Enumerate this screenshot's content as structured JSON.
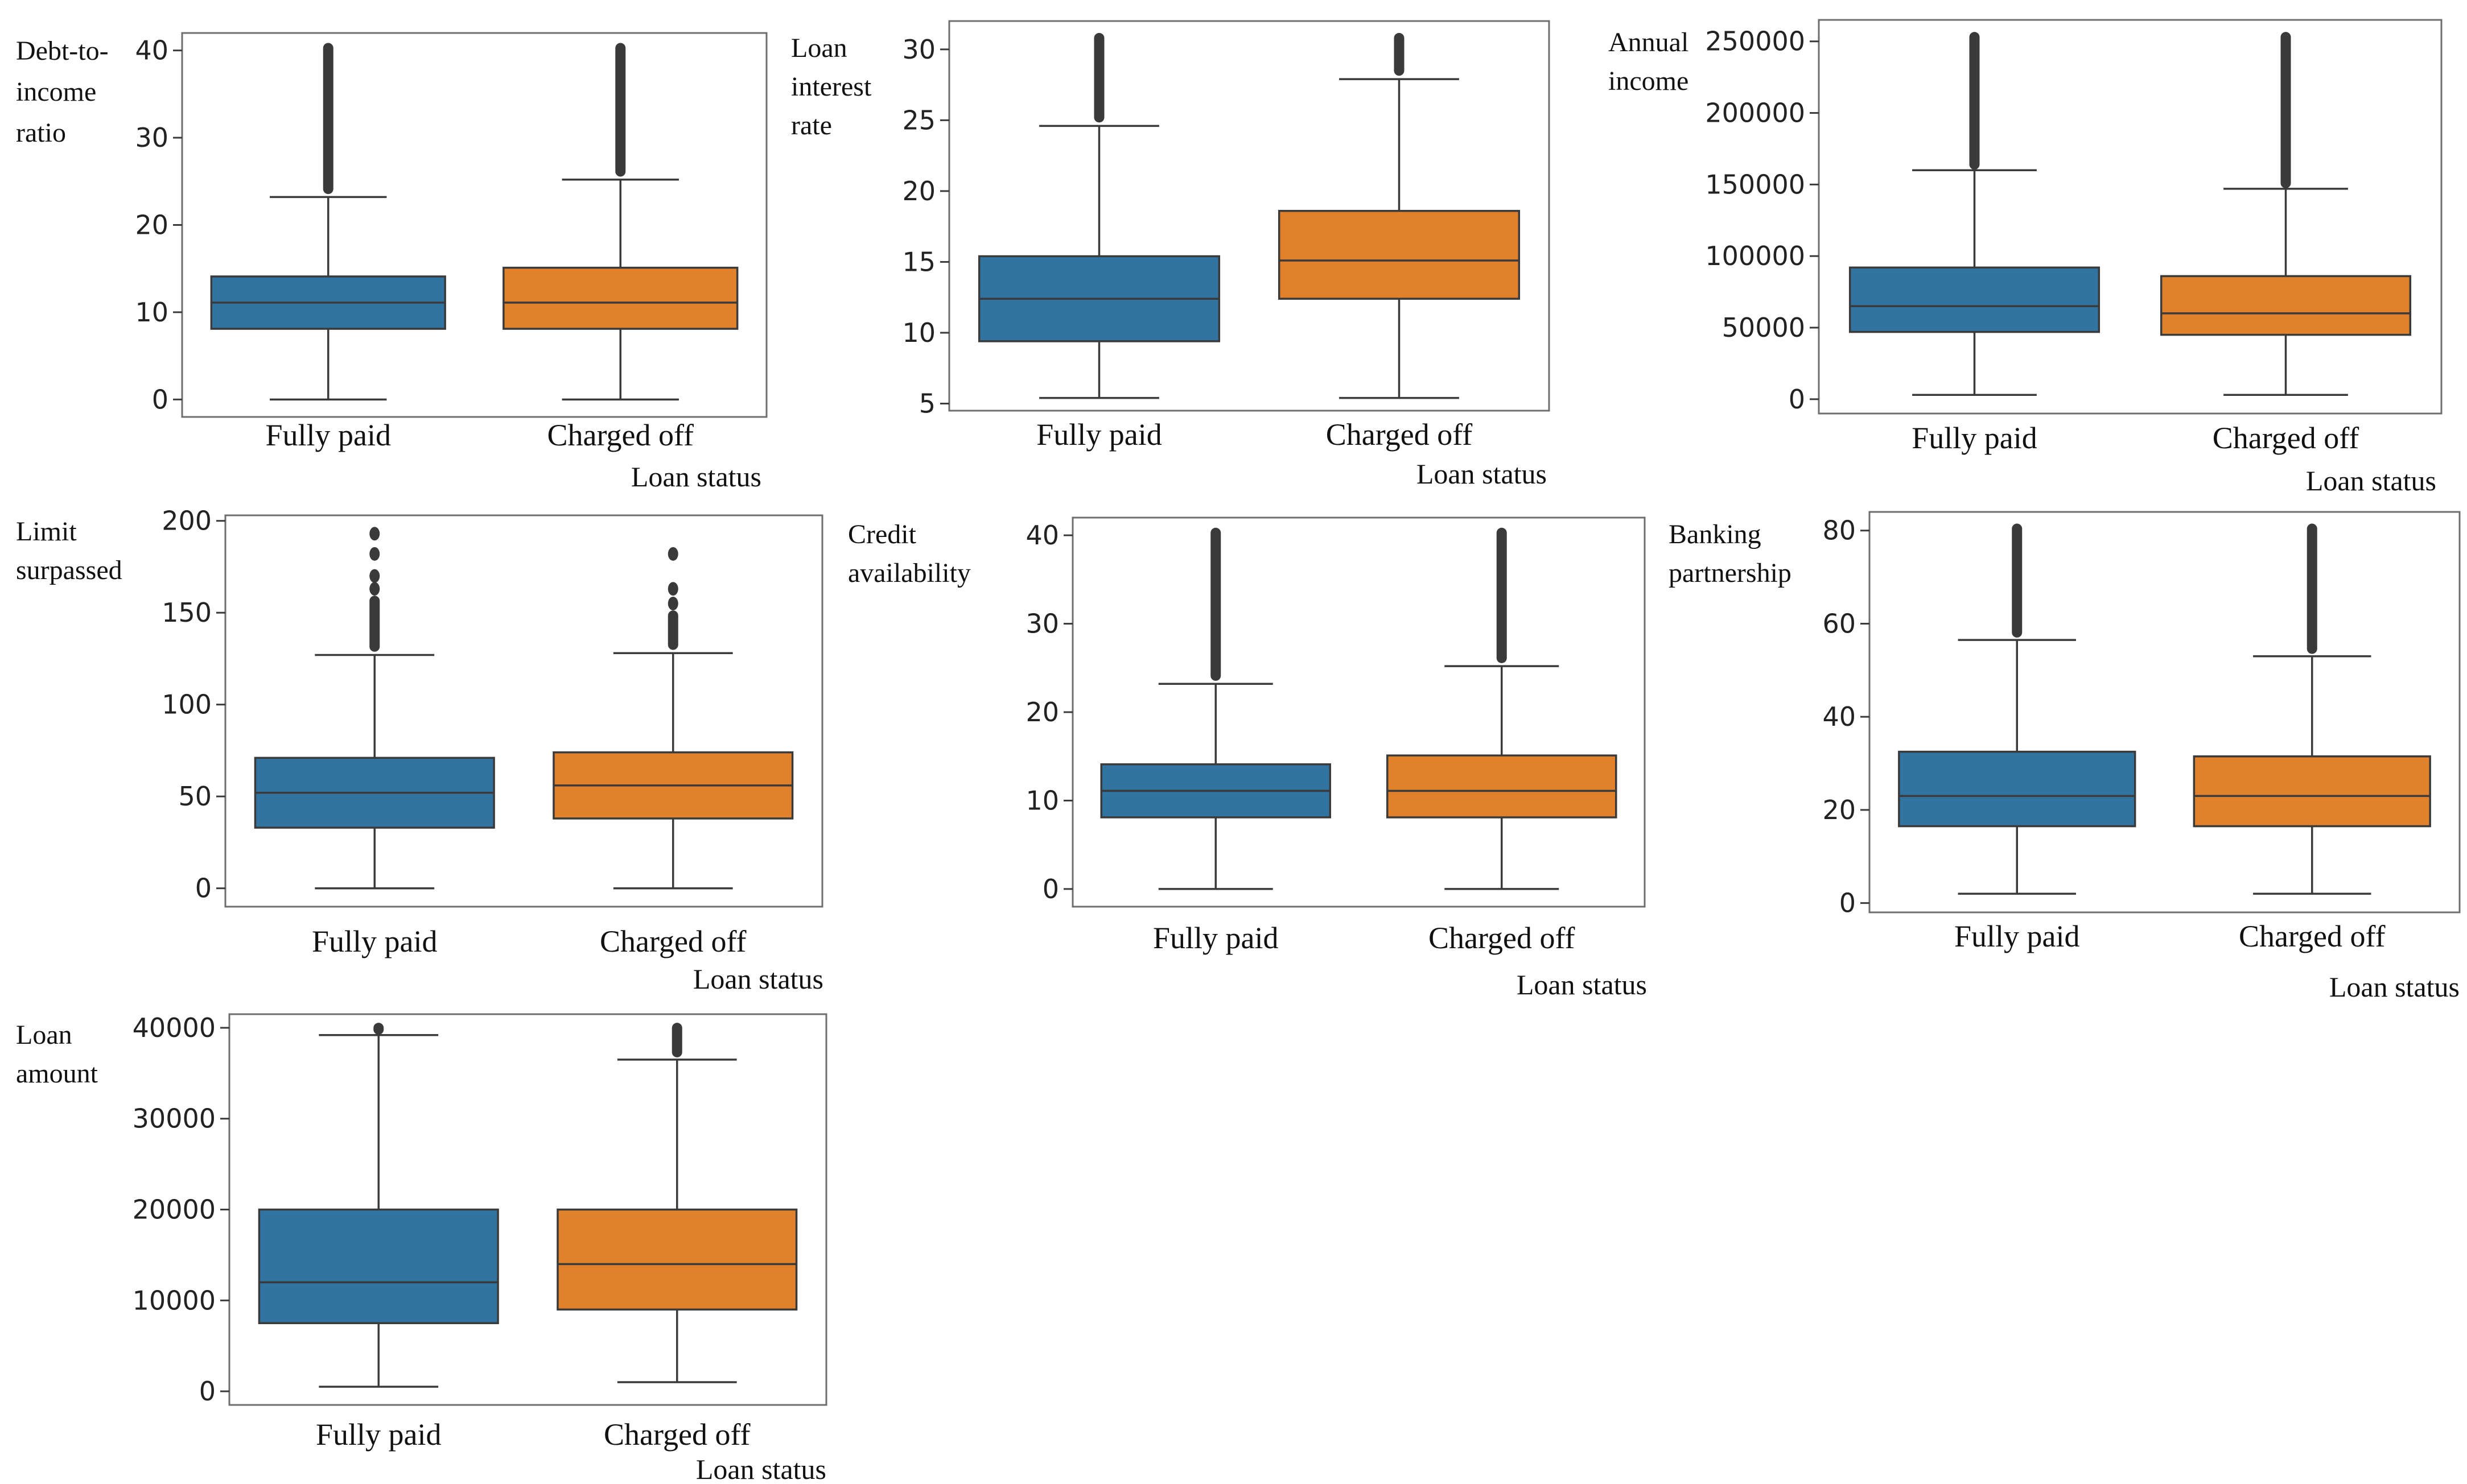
{
  "colors": {
    "fully_paid": "#3274a1",
    "charged_off": "#e1812c",
    "line": "#3a3a3a",
    "frame": "#6e6e6e"
  },
  "chart_data": [
    {
      "type": "box",
      "id": "dti",
      "ylabel": [
        "Debt-to-",
        "income",
        "ratio"
      ],
      "xlabel": "Loan status",
      "ylim": [
        -2,
        42
      ],
      "yticks": [
        0,
        10,
        20,
        30,
        40
      ],
      "tick_labels": [
        "0",
        "10",
        "20",
        "30",
        "40"
      ],
      "categories": [
        "Fully paid",
        "Charged off"
      ],
      "boxes": [
        {
          "q1": 8.1,
          "median": 11.1,
          "q3": 14.1,
          "whisker_low": 0,
          "whisker_high": 23.2,
          "outliers_from": 23.8,
          "outliers_to": 40.6
        },
        {
          "q1": 8.1,
          "median": 11.1,
          "q3": 15.1,
          "whisker_low": 0,
          "whisker_high": 25.2,
          "outliers_from": 25.8,
          "outliers_to": 40.6
        }
      ]
    },
    {
      "type": "box",
      "id": "interest",
      "ylabel": [
        "Loan",
        "interest",
        "rate"
      ],
      "xlabel": "Loan status",
      "ylim": [
        4.5,
        32
      ],
      "yticks": [
        5,
        10,
        15,
        20,
        25,
        30
      ],
      "tick_labels": [
        "5",
        "10",
        "15",
        "20",
        "25",
        "30"
      ],
      "categories": [
        "Fully paid",
        "Charged off"
      ],
      "boxes": [
        {
          "q1": 9.4,
          "median": 12.4,
          "q3": 15.4,
          "whisker_low": 5.4,
          "whisker_high": 24.6,
          "outliers_from": 25.0,
          "outliers_to": 31.0
        },
        {
          "q1": 12.4,
          "median": 15.1,
          "q3": 18.6,
          "whisker_low": 5.4,
          "whisker_high": 27.9,
          "outliers_from": 28.3,
          "outliers_to": 31.0
        }
      ]
    },
    {
      "type": "box",
      "id": "income",
      "ylabel": [
        "Annual",
        "income"
      ],
      "xlabel": "Loan status",
      "ylim": [
        -10000,
        265000
      ],
      "yticks": [
        0,
        50000,
        100000,
        150000,
        200000,
        250000
      ],
      "tick_labels": [
        "0",
        "50000",
        "100000",
        "150000",
        "200000",
        "250000"
      ],
      "categories": [
        "Fully paid",
        "Charged off"
      ],
      "boxes": [
        {
          "q1": 47000,
          "median": 65000,
          "q3": 92000,
          "whisker_low": 3000,
          "whisker_high": 160000,
          "outliers_from": 162000,
          "outliers_to": 255000
        },
        {
          "q1": 45000,
          "median": 60000,
          "q3": 86000,
          "whisker_low": 3000,
          "whisker_high": 147000,
          "outliers_from": 149000,
          "outliers_to": 255000
        }
      ]
    },
    {
      "type": "box",
      "id": "limit",
      "ylabel": [
        "Limit",
        "surpassed"
      ],
      "xlabel": "Loan status",
      "ylim": [
        -10,
        203
      ],
      "yticks": [
        0,
        50,
        100,
        150,
        200
      ],
      "tick_labels": [
        "0",
        "50",
        "100",
        "150",
        "200"
      ],
      "categories": [
        "Fully paid",
        "Charged off"
      ],
      "boxes": [
        {
          "q1": 33,
          "median": 52,
          "q3": 71,
          "whisker_low": 0,
          "whisker_high": 127,
          "outliers_from": 130,
          "outliers_to": 158,
          "outlier_points": [
            163,
            170,
            182,
            193
          ]
        },
        {
          "q1": 38,
          "median": 56,
          "q3": 74,
          "whisker_low": 0,
          "whisker_high": 128,
          "outliers_from": 131,
          "outliers_to": 150,
          "outlier_points": [
            155,
            163,
            182
          ]
        }
      ]
    },
    {
      "type": "box",
      "id": "credit",
      "ylabel": [
        "Credit",
        "availability"
      ],
      "xlabel": "Loan status",
      "ylim": [
        -2,
        42
      ],
      "yticks": [
        0,
        10,
        20,
        30,
        40
      ],
      "tick_labels": [
        "0",
        "10",
        "20",
        "30",
        "40"
      ],
      "categories": [
        "Fully paid",
        "Charged off"
      ],
      "boxes": [
        {
          "q1": 8.1,
          "median": 11.1,
          "q3": 14.1,
          "whisker_low": 0,
          "whisker_high": 23.2,
          "outliers_from": 23.8,
          "outliers_to": 40.6
        },
        {
          "q1": 8.1,
          "median": 11.1,
          "q3": 15.1,
          "whisker_low": 0,
          "whisker_high": 25.2,
          "outliers_from": 25.8,
          "outliers_to": 40.6
        }
      ]
    },
    {
      "type": "box",
      "id": "banking",
      "ylabel": [
        "Banking",
        "partnership"
      ],
      "xlabel": "Loan status",
      "ylim": [
        -2,
        84
      ],
      "yticks": [
        0,
        20,
        40,
        60,
        80
      ],
      "tick_labels": [
        "0",
        "20",
        "40",
        "60",
        "80"
      ],
      "categories": [
        "Fully paid",
        "Charged off"
      ],
      "boxes": [
        {
          "q1": 16.5,
          "median": 23,
          "q3": 32.5,
          "whisker_low": 2,
          "whisker_high": 56.5,
          "outliers_from": 57.5,
          "outliers_to": 81
        },
        {
          "q1": 16.5,
          "median": 23,
          "q3": 31.5,
          "whisker_low": 2,
          "whisker_high": 53,
          "outliers_from": 54,
          "outliers_to": 81
        }
      ]
    },
    {
      "type": "box",
      "id": "amount",
      "ylabel": [
        "Loan",
        "amount"
      ],
      "xlabel": "Loan status",
      "ylim": [
        -1500,
        41500
      ],
      "yticks": [
        0,
        10000,
        20000,
        30000,
        40000
      ],
      "tick_labels": [
        "0",
        "10000",
        "20000",
        "30000",
        "40000"
      ],
      "categories": [
        "Fully paid",
        "Charged off"
      ],
      "boxes": [
        {
          "q1": 7500,
          "median": 12000,
          "q3": 20000,
          "whisker_low": 500,
          "whisker_high": 39200,
          "outliers_from": 39500,
          "outliers_to": 40300
        },
        {
          "q1": 9000,
          "median": 14000,
          "q3": 20000,
          "whisker_low": 1000,
          "whisker_high": 36500,
          "outliers_from": 37000,
          "outliers_to": 40300
        }
      ]
    }
  ]
}
